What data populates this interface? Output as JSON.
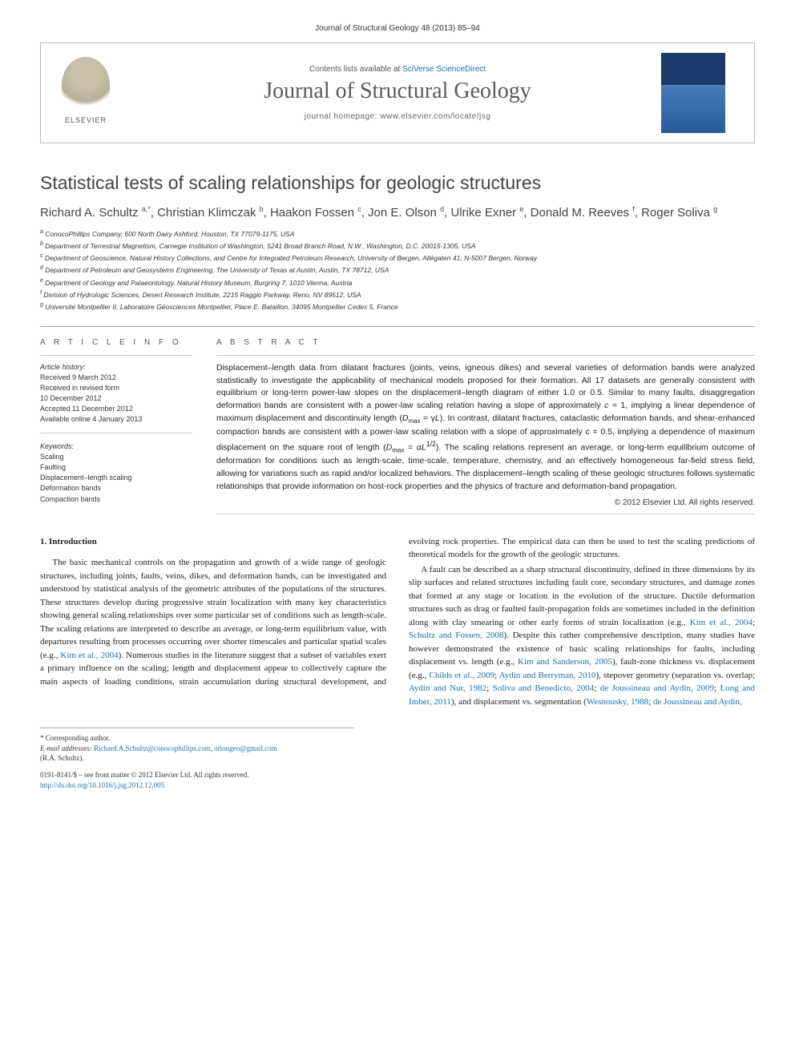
{
  "journal_ref": "Journal of Structural Geology 48 (2013) 85–94",
  "header": {
    "contents_prefix": "Contents lists available at ",
    "contents_link": "SciVerse ScienceDirect",
    "journal_name": "Journal of Structural Geology",
    "homepage_prefix": "journal homepage: ",
    "homepage_url": "www.elsevier.com/locate/jsg",
    "publisher": "ELSEVIER"
  },
  "title": "Statistical tests of scaling relationships for geologic structures",
  "authors_html": "Richard A. Schultz <sup>a,*</sup>, Christian Klimczak <sup>b</sup>, Haakon Fossen <sup>c</sup>, Jon E. Olson <sup>d</sup>, Ulrike Exner <sup>e</sup>, Donald M. Reeves <sup>f</sup>, Roger Soliva <sup>g</sup>",
  "affiliations": [
    "a ConocoPhillips Company, 600 North Dairy Ashford, Houston, TX 77079-1175, USA",
    "b Department of Terrestrial Magnetism, Carnegie Institution of Washington, 5241 Broad Branch Road, N.W., Washington, D.C. 20015-1305, USA",
    "c Department of Geoscience, Natural History Collections, and Centre for Integrated Petroleum Research, University of Bergen, Allégaten 41, N-5007 Bergen, Norway",
    "d Department of Petroleum and Geosystems Engineering, The University of Texas at Austin, Austin, TX 78712, USA",
    "e Department of Geology and Palaeontology, Natural History Museum, Burgring 7, 1010 Vienna, Austria",
    "f Division of Hydrologic Sciences, Desert Research Institute, 2215 Raggio Parkway, Reno, NV 89512, USA",
    "g Université Montpellier II, Laboratoire Géosciences Montpellier, Place E. Bataillon, 34095 Montpellier Cedex 5, France"
  ],
  "article_info": {
    "header": "A R T I C L E   I N F O",
    "history_label": "Article history:",
    "history": [
      "Received 9 March 2012",
      "Received in revised form",
      "10 December 2012",
      "Accepted 11 December 2012",
      "Available online 4 January 2013"
    ],
    "keywords_label": "Keywords:",
    "keywords": [
      "Scaling",
      "Faulting",
      "Displacement–length scaling",
      "Deformation bands",
      "Compaction bands"
    ]
  },
  "abstract": {
    "header": "A B S T R A C T",
    "text": "Displacement–length data from dilatant fractures (joints, veins, igneous dikes) and several varieties of deformation bands were analyzed statistically to investigate the applicability of mechanical models proposed for their formation. All 17 datasets are generally consistent with equilibrium or long-term power-law slopes on the displacement–length diagram of either 1.0 or 0.5. Similar to many faults, disaggregation deformation bands are consistent with a power-law scaling relation having a slope of approximately c = 1, implying a linear dependence of maximum displacement and discontinuity length (Dmax = γL). In contrast, dilatant fractures, cataclastic deformation bands, and shear-enhanced compaction bands are consistent with a power-law scaling relation with a slope of approximately c = 0.5, implying a dependence of maximum displacement on the square root of length (Dmax = αL^1/2). The scaling relations represent an average, or long-term equilibrium outcome of deformation for conditions such as length-scale, time-scale, temperature, chemistry, and an effectively homogeneous far-field stress field, allowing for variations such as rapid and/or localized behaviors. The displacement–length scaling of these geologic structures follows systematic relationships that provide information on host-rock properties and the physics of fracture and deformation-band propagation.",
    "copyright": "© 2012 Elsevier Ltd. All rights reserved."
  },
  "body": {
    "heading": "1. Introduction",
    "p1": "The basic mechanical controls on the propagation and growth of a wide range of geologic structures, including joints, faults, veins, dikes, and deformation bands, can be investigated and understood by statistical analysis of the geometric attributes of the populations of the structures. These structures develop during progressive strain localization with many key characteristics showing general scaling relationships over some particular set of conditions such as length-scale. The scaling relations are interpreted to describe an average, or long-term equilibrium value, with departures resulting from processes occurring over shorter timescales and particular spatial scales (e.g., ",
    "p1_link1": "Kim et al., 2004",
    "p1_mid": "). Numerous studies in the literature suggest that a subset of variables exert a primary influence on the scaling; length and displacement appear to collectively",
    "p2_start": "capture the main aspects of loading conditions, strain accumulation during structural development, and evolving rock properties. The empirical data can then be used to test the scaling predictions of theoretical models for the growth of the geologic structures.",
    "p3_start": "A fault can be described as a sharp structural discontinuity, defined in three dimensions by its slip surfaces and related structures including fault core, secondary structures, and damage zones that formed at any stage or location in the evolution of the structure. Ductile deformation structures such as drag or faulted fault-propagation folds are sometimes included in the definition along with clay smearing or other early forms of strain localization (e.g., ",
    "p3_link1": "Kim et al., 2004",
    "p3_sep1": "; ",
    "p3_link2": "Schultz and Fossen, 2008",
    "p3_mid1": "). Despite this rather comprehensive description, many studies have however demonstrated the existence of basic scaling relationships for faults, including displacement vs. length (e.g., ",
    "p3_link3": "Kim and Sanderson, 2005",
    "p3_mid2": "), fault-zone thickness vs. displacement (e.g., ",
    "p3_link4": "Childs et al., 2009",
    "p3_sep2": "; ",
    "p3_link5": "Aydin and Berryman, 2010",
    "p3_mid3": "), stepover geometry (separation vs. overlap; ",
    "p3_link6": "Aydin and Nur, 1982",
    "p3_sep3": "; ",
    "p3_link7": "Soliva and Benedicto, 2004",
    "p3_sep4": "; ",
    "p3_link8": "de Joussineau and Aydin, 2009",
    "p3_sep5": "; ",
    "p3_link9": "Long and Imber, 2011",
    "p3_mid4": "), and displacement vs. segmentation (",
    "p3_link10": "Wesnousky, 1988",
    "p3_sep6": "; ",
    "p3_link11": "de Joussineau and Aydin,"
  },
  "footnote": {
    "corr": "* Corresponding author.",
    "email_label": "E-mail addresses:",
    "email1": "Richard.A.Schultz@conocophillips.com",
    "sep": ", ",
    "email2": "oriongeo@gmail.com",
    "author_ref": "(R.A. Schultz)."
  },
  "footer": {
    "line1": "0191-8141/$ – see front matter © 2012 Elsevier Ltd. All rights reserved.",
    "doi": "http://dx.doi.org/10.1016/j.jsg.2012.12.005"
  }
}
